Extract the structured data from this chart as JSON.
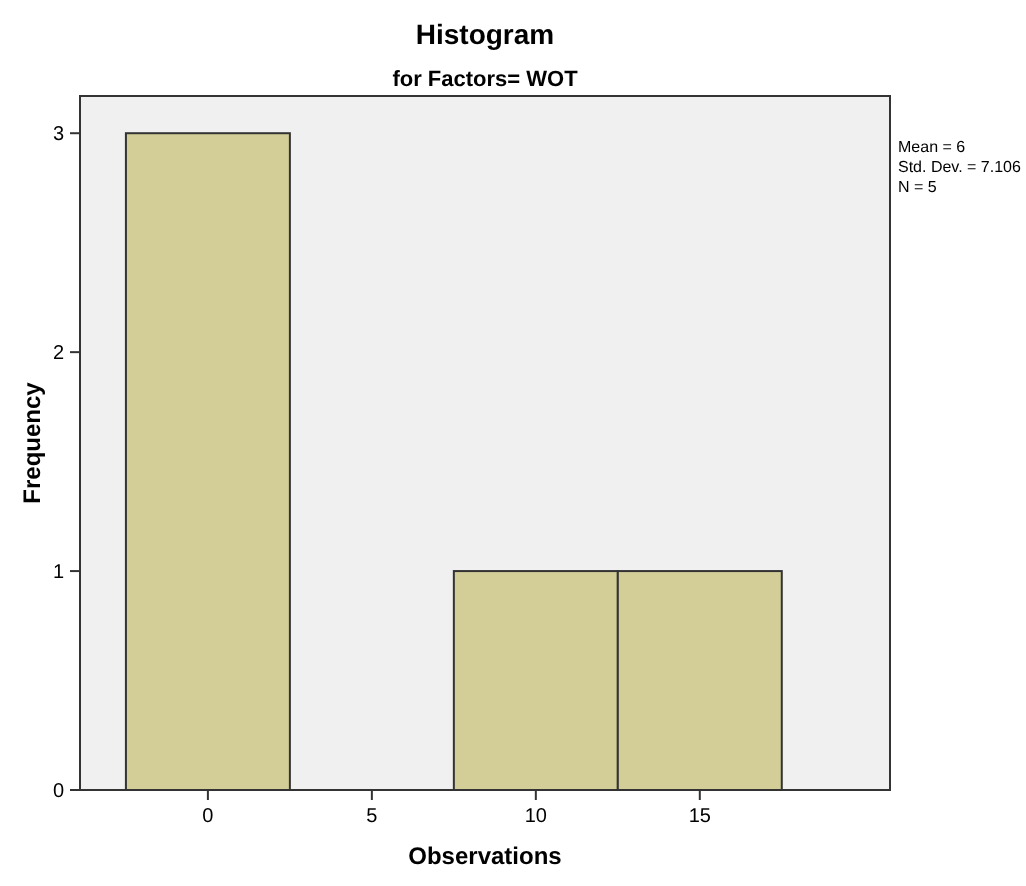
{
  "chart_data": {
    "type": "histogram",
    "title": "Histogram",
    "subtitle": "for Factors= WOT",
    "xlabel": "Observations",
    "ylabel": "Frequency",
    "bins": [
      -2.5,
      2.5,
      7.5,
      12.5,
      17.5
    ],
    "values": [
      3,
      0,
      1,
      1
    ],
    "color": "#d3ce97",
    "xlim": [
      -3.9,
      20.8
    ],
    "xticks": [
      0,
      5,
      10,
      15
    ],
    "ylim": [
      0,
      3.17
    ],
    "yticks": [
      0,
      1,
      2,
      3
    ],
    "grid": false,
    "annotations": [
      "Mean = 6",
      "Std. Dev. = 7.106",
      "N = 5"
    ]
  }
}
